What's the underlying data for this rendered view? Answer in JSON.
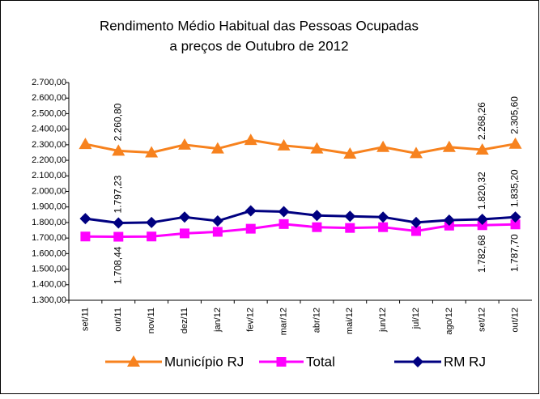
{
  "chart_data": {
    "type": "line",
    "title": "Rendimento Médio Habitual das Pessoas Ocupadas",
    "subtitle": "a preços de Outubro de 2012",
    "categories": [
      "set/11",
      "out/11",
      "nov/11",
      "dez/11",
      "jan/12",
      "fev/12",
      "mar/12",
      "abr/12",
      "mai/12",
      "jun/12",
      "jul/12",
      "ago/12",
      "set/12",
      "out/12"
    ],
    "ylim": [
      1300,
      2700
    ],
    "yticks": [
      {
        "value": 1300,
        "label": "1.300,00"
      },
      {
        "value": 1400,
        "label": "1.400,00"
      },
      {
        "value": 1500,
        "label": "1.500,00"
      },
      {
        "value": 1600,
        "label": "1.600,00"
      },
      {
        "value": 1700,
        "label": "1.700,00"
      },
      {
        "value": 1800,
        "label": "1.800,00"
      },
      {
        "value": 1900,
        "label": "1.900,00"
      },
      {
        "value": 2000,
        "label": "2.000,00"
      },
      {
        "value": 2100,
        "label": "2.100,00"
      },
      {
        "value": 2200,
        "label": "2.200,00"
      },
      {
        "value": 2300,
        "label": "2.300,00"
      },
      {
        "value": 2400,
        "label": "2.400,00"
      },
      {
        "value": 2500,
        "label": "2.500,00"
      },
      {
        "value": 2600,
        "label": "2.600,00"
      },
      {
        "value": 2700,
        "label": "2.700,00"
      }
    ],
    "series": [
      {
        "name": "Município RJ",
        "color": "#f7821e",
        "marker": "triangle",
        "label_side": "above",
        "values": [
          2304,
          2260.8,
          2250,
          2300,
          2275,
          2330,
          2295,
          2275,
          2242,
          2285,
          2245,
          2285,
          2268.26,
          2305.6
        ],
        "value_labels": [
          null,
          "2.260,80",
          null,
          null,
          null,
          null,
          null,
          null,
          null,
          null,
          null,
          null,
          "2.268,26",
          "2.305,60"
        ]
      },
      {
        "name": "Total",
        "color": "#ff00ff",
        "marker": "square",
        "label_side": "below",
        "values": [
          1710,
          1708.44,
          1710,
          1730,
          1740,
          1760,
          1790,
          1770,
          1765,
          1770,
          1745,
          1780,
          1782.68,
          1787.7
        ],
        "value_labels": [
          null,
          "1.708,44",
          null,
          null,
          null,
          null,
          null,
          null,
          null,
          null,
          null,
          null,
          "1.782,68",
          "1.787,70"
        ]
      },
      {
        "name": "RM RJ",
        "color": "#000080",
        "marker": "diamond",
        "label_side": "above",
        "values": [
          1825,
          1797.23,
          1800,
          1835,
          1810,
          1875,
          1870,
          1845,
          1840,
          1835,
          1800,
          1815,
          1820.32,
          1835.2
        ],
        "value_labels": [
          null,
          "1.797,23",
          null,
          null,
          null,
          null,
          null,
          null,
          null,
          null,
          null,
          null,
          "1.820,32",
          "1.835,20"
        ]
      }
    ]
  }
}
